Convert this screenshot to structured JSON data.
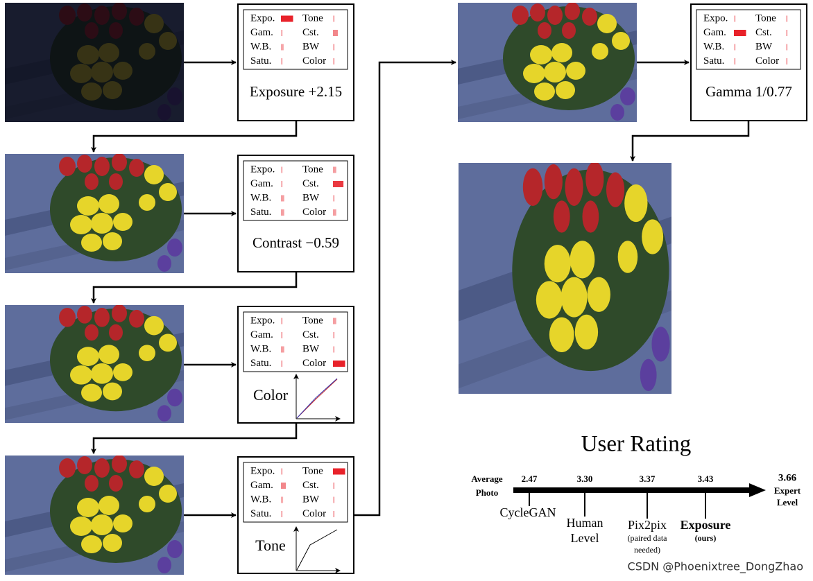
{
  "filters": [
    "Expo.",
    "Gam.",
    "W.B.",
    "Satu.",
    "Tone",
    "Cst.",
    "BW",
    "Color"
  ],
  "steps": [
    {
      "label": "Exposure +2.15",
      "weights": [
        1,
        0.05,
        0.15,
        0.05,
        0.05,
        0.35,
        0.05,
        0.05
      ]
    },
    {
      "label": "Contrast −0.59",
      "weights": [
        0.05,
        0.05,
        0.2,
        0.2,
        0.2,
        0.85,
        0.05,
        0.2
      ]
    },
    {
      "label": "Color",
      "weights": [
        0.05,
        0.05,
        0.2,
        0.05,
        0.2,
        0.05,
        0.05,
        1
      ]
    },
    {
      "label": "Tone",
      "weights": [
        0.05,
        0.35,
        0.1,
        0.05,
        1,
        0.05,
        0.05,
        0.05
      ]
    },
    {
      "label": "Gamma 1/0.77",
      "weights": [
        0.05,
        1,
        0.05,
        0.05,
        0.05,
        0.05,
        0.05,
        0.05
      ]
    }
  ],
  "user_rating": {
    "title": "User Rating",
    "start": [
      "Average",
      "Photo"
    ],
    "end_score": "3.66",
    "end": [
      "Expert",
      "Level"
    ],
    "methods": [
      {
        "score": "2.47",
        "name": [
          "CycleGAN"
        ]
      },
      {
        "score": "3.30",
        "name": [
          "Human",
          "Level"
        ]
      },
      {
        "score": "3.37",
        "name": [
          "Pix2pix"
        ],
        "note": [
          "(paired data",
          "needed)"
        ]
      },
      {
        "score": "3.43",
        "name": [
          "Exposure"
        ],
        "note": [
          "(ours)"
        ]
      }
    ]
  },
  "watermark": "CSDN @Phoenixtree_DongZhao"
}
